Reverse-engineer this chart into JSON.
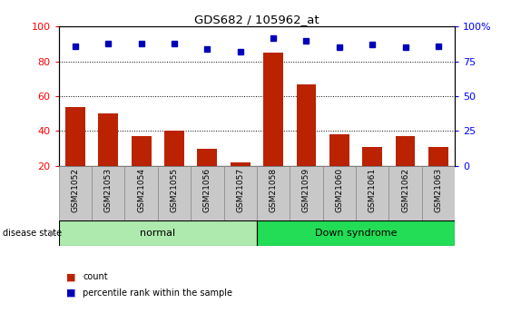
{
  "title": "GDS682 / 105962_at",
  "samples": [
    "GSM21052",
    "GSM21053",
    "GSM21054",
    "GSM21055",
    "GSM21056",
    "GSM21057",
    "GSM21058",
    "GSM21059",
    "GSM21060",
    "GSM21061",
    "GSM21062",
    "GSM21063"
  ],
  "count_values": [
    54,
    50,
    37,
    40,
    30,
    22,
    85,
    67,
    38,
    31,
    37,
    31
  ],
  "percentile_values": [
    86,
    88,
    88,
    88,
    84,
    82,
    92,
    90,
    85,
    87,
    85,
    86
  ],
  "ylim_left": [
    20,
    100
  ],
  "ylim_right": [
    0,
    100
  ],
  "right_ticks": [
    0,
    25,
    50,
    75,
    100
  ],
  "right_tick_labels": [
    "0",
    "25",
    "50",
    "75",
    "100%"
  ],
  "left_ticks": [
    20,
    40,
    60,
    80,
    100
  ],
  "groups": [
    {
      "label": "normal",
      "start": 0,
      "end": 6,
      "color": "#AEEAAE"
    },
    {
      "label": "Down syndrome",
      "start": 6,
      "end": 12,
      "color": "#22DD55"
    }
  ],
  "bar_color": "#BB2200",
  "dot_color": "#0000BB",
  "xtick_bg_color": "#C8C8C8",
  "disease_state_label": "disease state",
  "legend_count_label": "count",
  "legend_percentile_label": "percentile rank within the sample",
  "fig_width": 5.63,
  "fig_height": 3.45,
  "dpi": 100
}
